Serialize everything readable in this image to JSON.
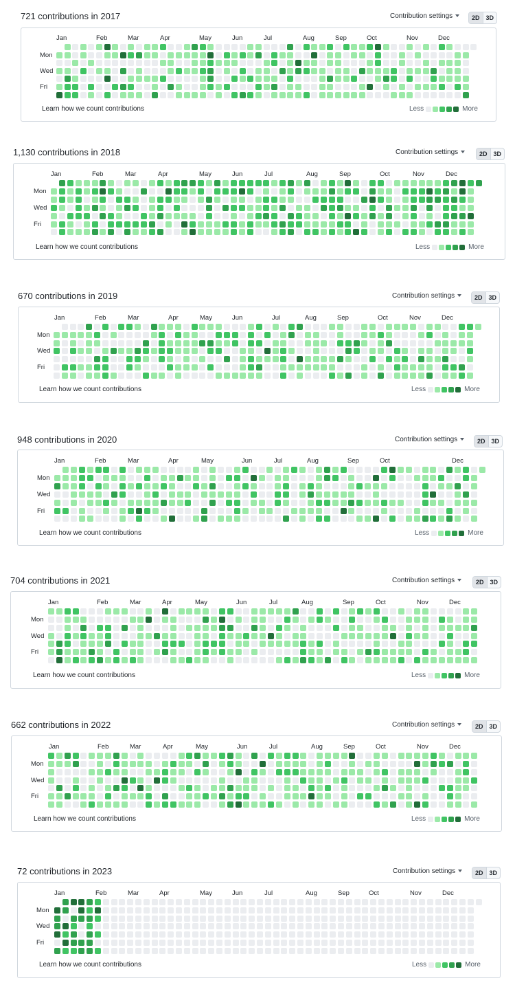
{
  "shared": {
    "settings_label": "Contribution settings",
    "toggle_2d": "2D",
    "toggle_3d": "3D",
    "learn_link": "Learn how we count contributions",
    "legend_less": "Less",
    "legend_more": "More",
    "day_labels": [
      "Mon",
      "Wed",
      "Fri"
    ],
    "palette": [
      "#ebedf0",
      "#9be9a8",
      "#40c463",
      "#30a14e",
      "#216e39"
    ]
  },
  "years": [
    {
      "title": "721 contributions in 2017",
      "months": [
        "Jan",
        "Feb",
        "Mar",
        "Apr",
        "May",
        "Jun",
        "Jul",
        "Aug",
        "Sep",
        "Oct",
        "Nov",
        "Dec"
      ]
    },
    {
      "title": "1,130 contributions in 2018",
      "months": [
        "Jan",
        "Feb",
        "Mar",
        "Apr",
        "May",
        "Jun",
        "Jul",
        "Aug",
        "Sep",
        "Oct",
        "Nov",
        "Dec"
      ]
    },
    {
      "title": "670 contributions in 2019",
      "months": [
        "Jan",
        "Feb",
        "Mar",
        "Apr",
        "May",
        "Jun",
        "Jul",
        "Aug",
        "Sep",
        "Oct",
        "Nov",
        "Dec"
      ]
    },
    {
      "title": "948 contributions in 2020",
      "months": [
        "Jan",
        "Feb",
        "Mar",
        "Apr",
        "May",
        "Jun",
        "Jul",
        "Aug",
        "Sep",
        "Oct",
        "Dec"
      ]
    },
    {
      "title": "704 contributions in 2021",
      "months": [
        "Jan",
        "Feb",
        "Mar",
        "Apr",
        "May",
        "Jun",
        "Jul",
        "Aug",
        "Sep",
        "Oct",
        "Nov",
        "Dec"
      ]
    },
    {
      "title": "662 contributions in 2022",
      "months": [
        "Jan",
        "Feb",
        "Mar",
        "Apr",
        "May",
        "Jun",
        "Jul",
        "Aug",
        "Sep",
        "Oct",
        "Nov",
        "Dec"
      ]
    },
    {
      "title": "72 contributions in 2023",
      "months": [
        "Jan",
        "Feb",
        "Mar",
        "Apr",
        "May",
        "Jun",
        "Jul",
        "Aug",
        "Sep",
        "Oct",
        "Nov",
        "Dec"
      ]
    }
  ]
}
